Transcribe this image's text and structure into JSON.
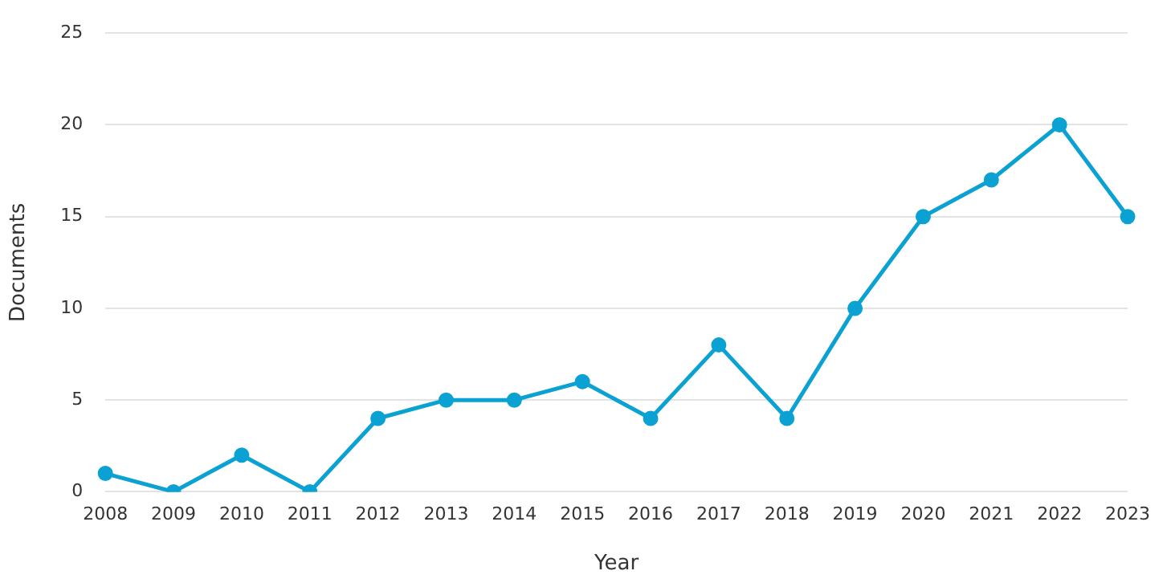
{
  "chart_data": {
    "type": "line",
    "xlabel": "Year",
    "ylabel": "Documents",
    "categories": [
      "2008",
      "2009",
      "2010",
      "2011",
      "2012",
      "2013",
      "2014",
      "2015",
      "2016",
      "2017",
      "2018",
      "2019",
      "2020",
      "2021",
      "2022",
      "2023"
    ],
    "series": [
      {
        "color": "#0ba2d3",
        "values": [
          1,
          0,
          2,
          0,
          4,
          5,
          5,
          6,
          4,
          8,
          4,
          10,
          15,
          17,
          20,
          15
        ]
      }
    ],
    "ylim": [
      0,
      25
    ],
    "yticks": [
      0,
      5,
      10,
      15,
      20,
      25
    ],
    "grid": "y",
    "legend": false,
    "marker": "circle",
    "line_style": "solid"
  }
}
